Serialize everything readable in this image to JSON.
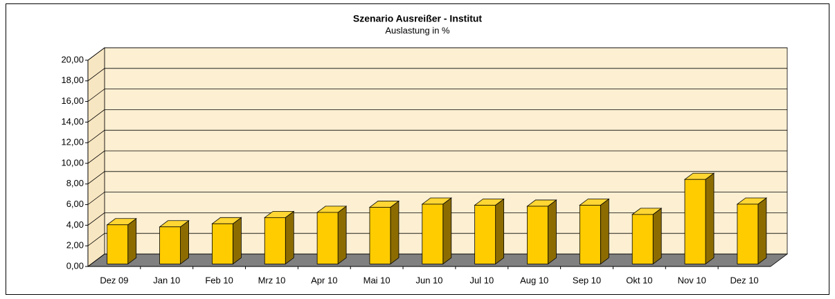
{
  "chart_data": {
    "type": "bar3d",
    "title": "Szenario Ausreißer - Institut",
    "subtitle": "Auslastung in %",
    "categories": [
      "Dez 09",
      "Jan 10",
      "Feb 10",
      "Mrz 10",
      "Apr 10",
      "Mai 10",
      "Jun 10",
      "Jul 10",
      "Aug 10",
      "Sep 10",
      "Okt 10",
      "Nov 10",
      "Dez 10"
    ],
    "values": [
      3.8,
      3.6,
      3.9,
      4.5,
      5.0,
      5.5,
      5.8,
      5.7,
      5.6,
      5.7,
      4.8,
      8.2,
      5.8
    ],
    "color": "#ffcc00",
    "ylim": [
      0,
      20
    ],
    "yticks": [
      {
        "value": 0,
        "label": "0,00"
      },
      {
        "value": 2,
        "label": "2,00"
      },
      {
        "value": 4,
        "label": "4,00"
      },
      {
        "value": 6,
        "label": "6,00"
      },
      {
        "value": 8,
        "label": "8,00"
      },
      {
        "value": 10,
        "label": "10,00"
      },
      {
        "value": 12,
        "label": "12,00"
      },
      {
        "value": 14,
        "label": "14,00"
      },
      {
        "value": 16,
        "label": "16,00"
      },
      {
        "value": 18,
        "label": "18,00"
      },
      {
        "value": 20,
        "label": "20,00"
      }
    ],
    "grid": true
  }
}
